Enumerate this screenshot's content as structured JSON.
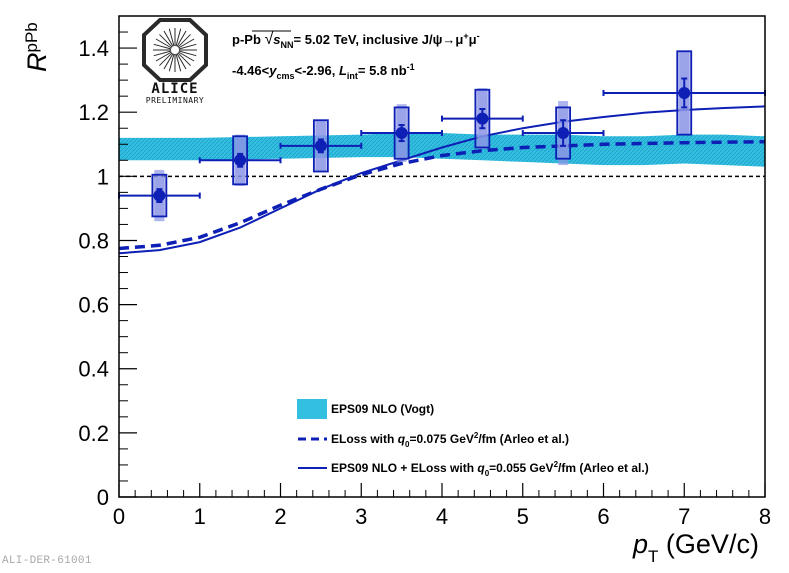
{
  "chart_data": {
    "type": "scatter",
    "title": "",
    "xlabel": "p_T (GeV/c)",
    "xlabel_parts": {
      "symbol": "p",
      "subscript": "T",
      "unit": " (GeV/c)"
    },
    "ylabel": "R_pPb",
    "ylabel_parts": {
      "symbol": "R",
      "subscript": "pPb"
    },
    "xlim": [
      0,
      8
    ],
    "ylim": [
      0,
      1.5
    ],
    "x_ticks": [
      0,
      1,
      2,
      3,
      4,
      5,
      6,
      7,
      8
    ],
    "y_ticks": [
      0,
      0.2,
      0.4,
      0.6,
      0.8,
      1,
      1.2,
      1.4
    ],
    "x_tick_labels": [
      "0",
      "1",
      "2",
      "3",
      "4",
      "5",
      "6",
      "7",
      "8"
    ],
    "y_tick_labels": [
      "0",
      "0.2",
      "0.4",
      "0.6",
      "0.8",
      "1",
      "1.2",
      "1.4"
    ],
    "reference_line": 1,
    "data_points": [
      {
        "x": 0.5,
        "y": 0.94,
        "x_low": 0,
        "x_high": 1,
        "stat": 0.02,
        "syst": 0.065,
        "corr": 0.08
      },
      {
        "x": 1.5,
        "y": 1.05,
        "x_low": 1,
        "x_high": 2,
        "stat": 0.02,
        "syst": 0.075,
        "corr": 0.08
      },
      {
        "x": 2.5,
        "y": 1.095,
        "x_low": 2,
        "x_high": 3,
        "stat": 0.02,
        "syst": 0.08,
        "corr": 0.08
      },
      {
        "x": 3.5,
        "y": 1.135,
        "x_low": 3,
        "x_high": 4,
        "stat": 0.025,
        "syst": 0.08,
        "corr": 0.09
      },
      {
        "x": 4.5,
        "y": 1.18,
        "x_low": 4,
        "x_high": 5,
        "stat": 0.03,
        "syst": 0.09,
        "corr": 0.095
      },
      {
        "x": 5.5,
        "y": 1.135,
        "x_low": 5,
        "x_high": 6,
        "stat": 0.04,
        "syst": 0.08,
        "corr": 0.1
      },
      {
        "x": 7.0,
        "y": 1.26,
        "x_low": 6,
        "x_high": 8,
        "stat": 0.045,
        "syst": 0.13,
        "corr": 0.13
      }
    ],
    "series": [
      {
        "name": "EPS09 NLO (Vogt)",
        "kind": "band",
        "x": [
          0.0,
          1.0,
          2.0,
          3.0,
          3.5,
          4.0,
          4.5,
          5.0,
          5.5,
          6.0,
          6.5,
          7.0,
          7.5,
          8.0
        ],
        "low": [
          1.05,
          1.05,
          1.055,
          1.06,
          1.06,
          1.055,
          1.05,
          1.045,
          1.04,
          1.035,
          1.035,
          1.04,
          1.035,
          1.03
        ],
        "high": [
          1.12,
          1.12,
          1.125,
          1.13,
          1.135,
          1.135,
          1.13,
          1.13,
          1.13,
          1.125,
          1.125,
          1.13,
          1.13,
          1.125
        ]
      },
      {
        "name": "ELoss with q0=0.075 GeV²/fm (Arleo et al.)",
        "kind": "dashed",
        "x": [
          0.0,
          0.5,
          1.0,
          1.5,
          2.0,
          2.5,
          3.0,
          3.5,
          4.0,
          4.5,
          5.0,
          5.5,
          6.0,
          7.0,
          8.0
        ],
        "y": [
          0.775,
          0.785,
          0.81,
          0.855,
          0.91,
          0.96,
          1.005,
          1.04,
          1.065,
          1.08,
          1.09,
          1.095,
          1.1,
          1.105,
          1.108
        ]
      },
      {
        "name": "EPS09 NLO + ELoss with q0=0.055 GeV²/fm (Arleo et al.)",
        "kind": "solid",
        "x": [
          0.0,
          0.5,
          1.0,
          1.5,
          2.0,
          2.5,
          3.0,
          3.5,
          4.0,
          4.5,
          5.0,
          5.5,
          6.0,
          6.5,
          7.0,
          7.5,
          8.0
        ],
        "y": [
          0.76,
          0.77,
          0.795,
          0.84,
          0.9,
          0.96,
          1.01,
          1.05,
          1.09,
          1.125,
          1.15,
          1.17,
          1.185,
          1.198,
          1.207,
          1.213,
          1.218
        ]
      }
    ],
    "legend": [
      {
        "label": "EPS09 NLO (Vogt)",
        "style": "band"
      },
      {
        "label_prefix": "ELoss with ",
        "label_q": "q",
        "label_q_sub": "0",
        "label_value": "=0.075 GeV",
        "label_sup": "2",
        "label_suffix": "/fm (Arleo et al.)",
        "style": "dashed"
      },
      {
        "label_prefix": "EPS09 NLO + ELoss with ",
        "label_q": "q",
        "label_q_sub": "0",
        "label_value": "=0.055 GeV",
        "label_sup": "2",
        "label_suffix": "/fm (Arleo et al.)",
        "style": "solid"
      }
    ],
    "legend_position": "bottom-center",
    "colors": {
      "points": "#0d1fb5",
      "syst_fill": "#8c96e6",
      "band": "#33c0e0",
      "curves": "#0d1fb5",
      "reference": "#000000"
    }
  },
  "annotations": {
    "line1_prefix": "p-Pb  ",
    "sqrt_symbol": "s",
    "sqrt_sub": "NN",
    "line1_energy": "= 5.02 TeV, inclusive J/ψ→μ",
    "line1_mu_plus": "+",
    "line1_mu": "μ",
    "line1_mu_minus": "-",
    "line2_range_start": "-4.46<",
    "line2_y": "y",
    "line2_y_sub": "cms",
    "line2_range_end": "<-2.96,  ",
    "line2_L": "L",
    "line2_L_sub": "int",
    "line2_lumi": "= 5.8 nb",
    "line2_lumi_sup": "-1"
  },
  "logo": {
    "name": "ALICE",
    "subtitle": "PRELIMINARY"
  },
  "footer": {
    "id": "ALI-DER-61001"
  }
}
